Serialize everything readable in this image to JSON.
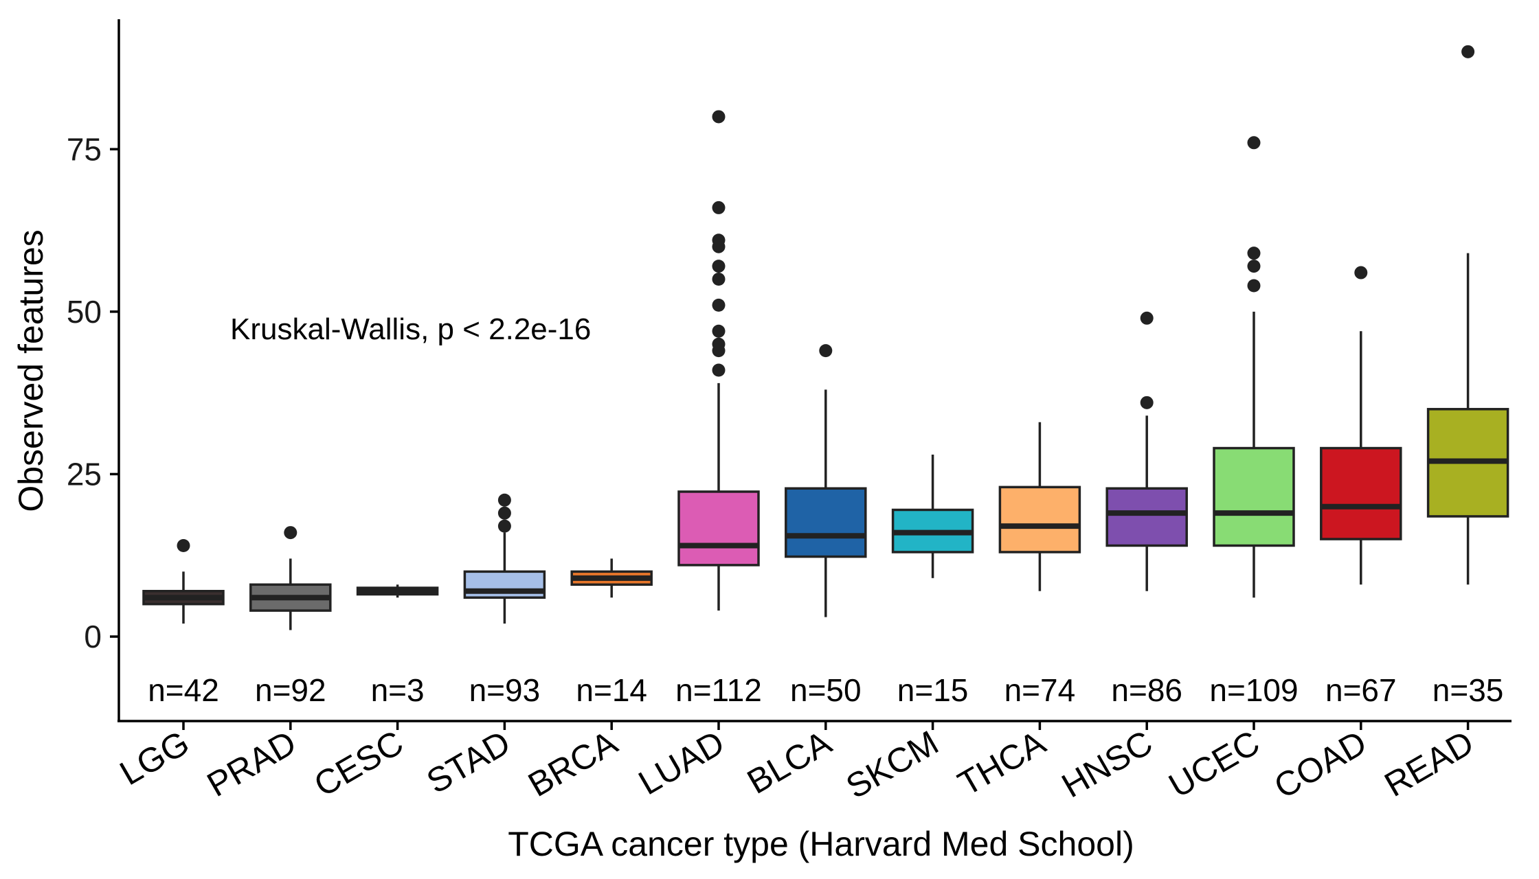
{
  "chart_data": {
    "type": "boxplot",
    "xlabel": "TCGA cancer type (Harvard Med School)",
    "ylabel": "Observed features",
    "ylim": [
      -13,
      95
    ],
    "yticks": [
      0,
      25,
      50,
      75
    ],
    "annotation": "Kruskal-Wallis, p < 2.2e-16",
    "series": [
      {
        "category": "LGG",
        "n_label": "n=42",
        "color": "#3a2f2f",
        "min": 2,
        "q1": 5,
        "median": 6,
        "q3": 7,
        "max": 10,
        "outliers": [
          14
        ]
      },
      {
        "category": "PRAD",
        "n_label": "n=92",
        "color": "#6b6b6b",
        "min": 1,
        "q1": 4,
        "median": 6,
        "q3": 8,
        "max": 12,
        "outliers": [
          16
        ]
      },
      {
        "category": "CESC",
        "n_label": "n=3",
        "color": "#3c3c3c",
        "min": 6,
        "q1": 6.5,
        "median": 7,
        "q3": 7.5,
        "max": 8,
        "outliers": []
      },
      {
        "category": "STAD",
        "n_label": "n=93",
        "color": "#a6bfe8",
        "min": 2,
        "q1": 6,
        "median": 7,
        "q3": 10,
        "max": 16,
        "outliers": [
          17,
          19,
          21
        ]
      },
      {
        "category": "BRCA",
        "n_label": "n=14",
        "color": "#e8762a",
        "min": 6,
        "q1": 8,
        "median": 9,
        "q3": 10,
        "max": 12,
        "outliers": []
      },
      {
        "category": "LUAD",
        "n_label": "n=112",
        "color": "#dc5cb4",
        "min": 4,
        "q1": 11,
        "median": 14,
        "q3": 22.3,
        "max": 39,
        "outliers": [
          41,
          44,
          45,
          47,
          51,
          55,
          57,
          60,
          61,
          66,
          80
        ]
      },
      {
        "category": "BLCA",
        "n_label": "n=50",
        "color": "#1f63a6",
        "min": 3,
        "q1": 12.3,
        "median": 15.5,
        "q3": 22.8,
        "max": 38,
        "outliers": [
          44
        ]
      },
      {
        "category": "SKCM",
        "n_label": "n=15",
        "color": "#22b4c6",
        "min": 9,
        "q1": 13,
        "median": 16,
        "q3": 19.5,
        "max": 28,
        "outliers": []
      },
      {
        "category": "THCA",
        "n_label": "n=74",
        "color": "#fdb06a",
        "min": 7,
        "q1": 13,
        "median": 17,
        "q3": 23,
        "max": 33,
        "outliers": []
      },
      {
        "category": "HNSC",
        "n_label": "n=86",
        "color": "#7e4fae",
        "min": 7,
        "q1": 14,
        "median": 19,
        "q3": 22.8,
        "max": 34,
        "outliers": [
          36,
          49
        ]
      },
      {
        "category": "UCEC",
        "n_label": "n=109",
        "color": "#88dc74",
        "min": 6,
        "q1": 14,
        "median": 19,
        "q3": 29,
        "max": 50,
        "outliers": [
          54,
          57,
          59,
          76
        ]
      },
      {
        "category": "COAD",
        "n_label": "n=67",
        "color": "#cc1620",
        "min": 8,
        "q1": 15,
        "median": 20,
        "q3": 29,
        "max": 47,
        "outliers": [
          56
        ]
      },
      {
        "category": "READ",
        "n_label": "n=35",
        "color": "#a8b022",
        "min": 8,
        "q1": 18.5,
        "median": 27,
        "q3": 35,
        "max": 59,
        "outliers": [
          90
        ]
      }
    ]
  }
}
